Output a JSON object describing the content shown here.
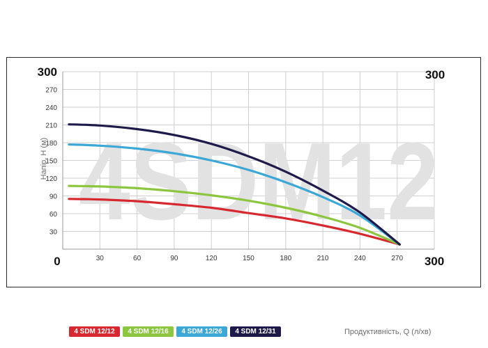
{
  "chart_data": {
    "type": "line",
    "watermark": "4SDM12",
    "ylabel": "Напір, H (м)",
    "xlabel": "Продуктивність, Q (л/хв)",
    "xlim": [
      0,
      300
    ],
    "ylim": [
      0,
      300
    ],
    "x_ticks": [
      "30",
      "60",
      "90",
      "120",
      "150",
      "180",
      "210",
      "240",
      "270"
    ],
    "y_ticks": [
      "30",
      "60",
      "90",
      "120",
      "150",
      "180",
      "210",
      "240",
      "270"
    ],
    "x_origin_label": "0",
    "y_origin_label": "0",
    "x_max_label": "300",
    "y_max_label": "300",
    "y_max_right_label": "300",
    "grid": true,
    "legend_position": "bottom-left",
    "series": [
      {
        "name": "4 SDM 12/12",
        "color": "#d8282f",
        "x": [
          5,
          30,
          60,
          90,
          120,
          150,
          180,
          210,
          240,
          272
        ],
        "y": [
          85,
          84,
          81,
          76,
          70,
          61,
          52,
          40,
          26,
          8
        ]
      },
      {
        "name": "4 SDM 12/16",
        "color": "#8cc63f",
        "x": [
          5,
          30,
          60,
          90,
          120,
          150,
          180,
          210,
          240,
          272
        ],
        "y": [
          107,
          106,
          103,
          98,
          91,
          82,
          70,
          55,
          36,
          8
        ]
      },
      {
        "name": "4 SDM 12/26",
        "color": "#3aa7d6",
        "x": [
          5,
          30,
          60,
          90,
          120,
          150,
          180,
          210,
          240,
          272
        ],
        "y": [
          177,
          175,
          170,
          162,
          150,
          134,
          113,
          88,
          57,
          8
        ]
      },
      {
        "name": "4 SDM 12/31",
        "color": "#1e1b4b",
        "x": [
          5,
          30,
          60,
          90,
          120,
          150,
          180,
          210,
          240,
          272
        ],
        "y": [
          211,
          209,
          203,
          193,
          178,
          157,
          131,
          99,
          62,
          8
        ]
      }
    ]
  }
}
